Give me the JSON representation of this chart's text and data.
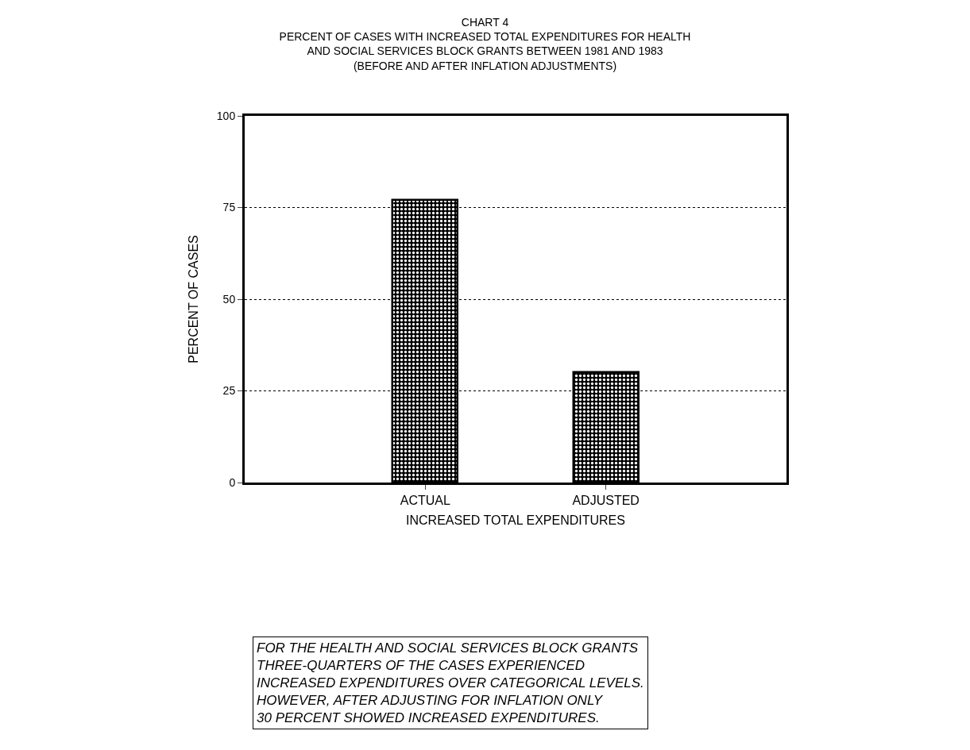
{
  "chart_data": {
    "type": "bar",
    "title": "CHART 4\nPERCENT OF CASES WITH INCREASED TOTAL EXPENDITURES FOR HEALTH\nAND SOCIAL SERVICES BLOCK GRANTS BETWEEN 1981 AND 1983\n(BEFORE AND AFTER INFLATION ADJUSTMENTS)",
    "xlabel": "INCREASED TOTAL EXPENDITURES",
    "ylabel": "PERCENT OF CASES",
    "categories": [
      "ACTUAL",
      "ADJUSTED"
    ],
    "values": [
      77,
      30
    ],
    "color": "#000000",
    "ylim": [
      0,
      100
    ],
    "yticks": [
      0,
      25,
      50,
      75,
      100
    ],
    "grid": "y",
    "annotations": [
      "FOR THE HEALTH AND SOCIAL SERVICES BLOCK GRANTS\nTHREE-QUARTERS OF THE CASES EXPERIENCED\nINCREASED EXPENDITURES OVER CATEGORICAL LEVELS.\nHOWEVER, AFTER ADJUSTING FOR INFLATION ONLY\n30 PERCENT SHOWED INCREASED EXPENDITURES."
    ]
  }
}
